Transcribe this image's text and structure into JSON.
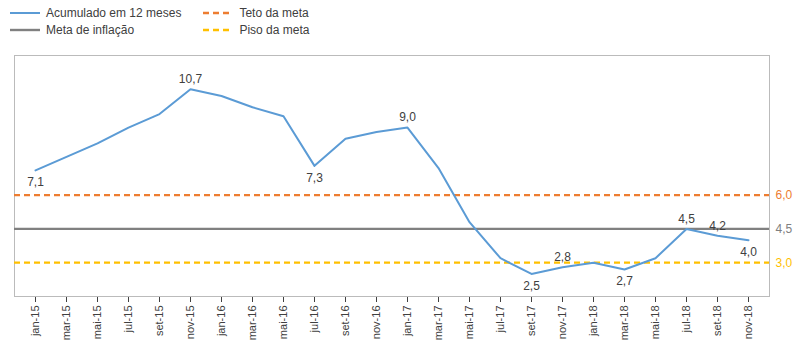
{
  "chart_data": {
    "type": "line",
    "categories": [
      "jan-15",
      "mar-15",
      "mai-15",
      "jul-15",
      "set-15",
      "nov-15",
      "jan-16",
      "mar-16",
      "mai-16",
      "jul-16",
      "set-16",
      "nov-16",
      "jan-17",
      "mar-17",
      "mai-17",
      "jul-17",
      "set-17",
      "nov-17",
      "jan-18",
      "mar-18",
      "mai-18",
      "jul-18",
      "set-18",
      "nov-18"
    ],
    "series": [
      {
        "name": "Acumulado em 12 meses",
        "color": "#5B9BD5",
        "line_style": "solid",
        "values": [
          7.1,
          7.7,
          8.3,
          9.0,
          9.6,
          10.7,
          10.4,
          9.9,
          9.5,
          7.3,
          8.5,
          8.8,
          9.0,
          7.2,
          4.8,
          3.2,
          2.5,
          2.8,
          3.0,
          2.7,
          3.2,
          4.5,
          4.2,
          4.0
        ],
        "value_labels": [
          "7,1",
          null,
          null,
          null,
          null,
          "10,7",
          null,
          null,
          null,
          "7,3",
          null,
          null,
          "9,0",
          null,
          null,
          null,
          "2,5",
          "2,8",
          null,
          "2,7",
          null,
          "4,5",
          "4,2",
          "4,0"
        ]
      }
    ],
    "hlines": [
      {
        "name": "Teto da meta",
        "value": 6.0,
        "label": "6,0",
        "color": "#ED7D31",
        "line_style": "dashed"
      },
      {
        "name": "Meta de inflação",
        "value": 4.5,
        "label": "4,5",
        "color": "#808080",
        "line_style": "solid"
      },
      {
        "name": "Piso da meta",
        "value": 3.0,
        "label": "3,0",
        "color": "#FFC000",
        "line_style": "dashed"
      }
    ],
    "ylim": [
      1.5,
      12.2
    ],
    "tick_labels": "x",
    "legend": "upper left"
  }
}
